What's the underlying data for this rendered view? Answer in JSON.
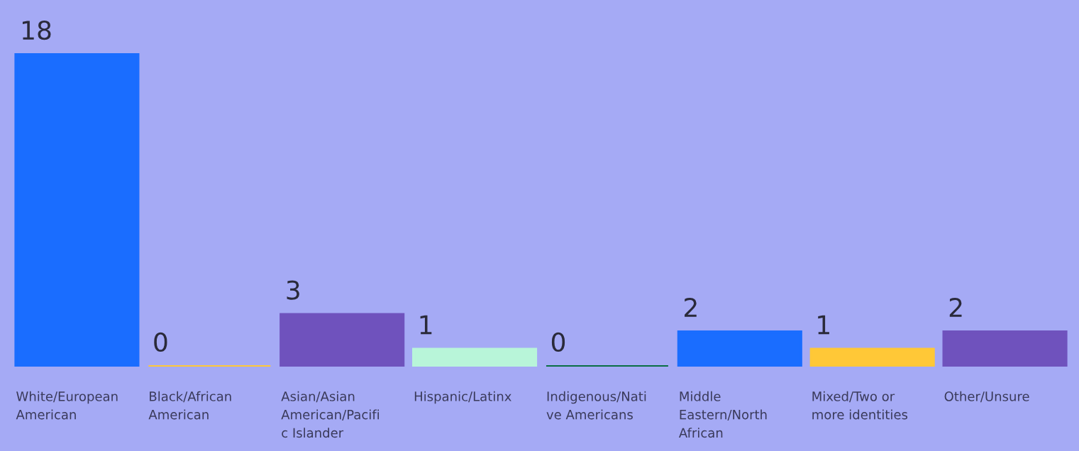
{
  "chart_data": {
    "type": "bar",
    "categories": [
      "White/European\nAmerican",
      "Black/African\nAmerican",
      "Asian/Asian\nAmerican/Pacifi\nc Islander",
      "Hispanic/Latinx",
      "Indigenous/Nati\nve Americans",
      "Middle\nEastern/North\nAfrican",
      "Mixed/Two or\nmore identities",
      "Other/Unsure"
    ],
    "values": [
      18,
      0,
      3,
      1,
      0,
      2,
      1,
      2
    ],
    "colors": [
      "#1a6dff",
      "#ffc837",
      "#6f52bd",
      "#b8f5d9",
      "#0a6e44",
      "#1a6dff",
      "#ffc837",
      "#6f52bd"
    ],
    "data_labels": true
  }
}
